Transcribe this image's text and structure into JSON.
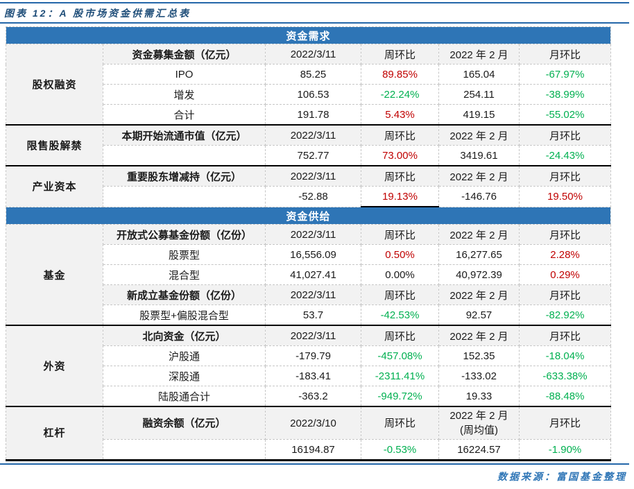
{
  "page": {
    "title": "图表 12：A 股市场资金供需汇总表",
    "source": "数据来源：富国基金整理"
  },
  "colors": {
    "banner_blue": "#2E75B6",
    "rule_blue": "#2467A9",
    "title_blue": "#1F4E79",
    "positive_red": "#C00000",
    "negative_green": "#00B050",
    "header_grey": "#F2F2F2"
  },
  "chart_data": {
    "type": "table",
    "title": "图表 12：A 股市场资金供需汇总表",
    "source": "数据来源：富国基金整理",
    "sections": [
      {
        "banner": "资金需求",
        "groups": [
          {
            "category": "股权融资",
            "rows": [
              {
                "kind": "header",
                "cells": [
                  {
                    "t": "资金募集金额（亿元）"
                  },
                  {
                    "t": "2022/3/11"
                  },
                  {
                    "t": "周环比"
                  },
                  {
                    "t": "2022 年 2 月"
                  },
                  {
                    "t": "月环比"
                  }
                ]
              },
              {
                "kind": "data",
                "cells": [
                  {
                    "t": "IPO"
                  },
                  {
                    "t": "85.25"
                  },
                  {
                    "t": "89.85%",
                    "c": "red"
                  },
                  {
                    "t": "165.04"
                  },
                  {
                    "t": "-67.97%",
                    "c": "green"
                  }
                ]
              },
              {
                "kind": "data",
                "cells": [
                  {
                    "t": "增发"
                  },
                  {
                    "t": "106.53"
                  },
                  {
                    "t": "-22.24%",
                    "c": "green"
                  },
                  {
                    "t": "254.11"
                  },
                  {
                    "t": "-38.99%",
                    "c": "green"
                  }
                ]
              },
              {
                "kind": "data",
                "cells": [
                  {
                    "t": "合计"
                  },
                  {
                    "t": "191.78"
                  },
                  {
                    "t": "5.43%",
                    "c": "red"
                  },
                  {
                    "t": "419.15"
                  },
                  {
                    "t": "-55.02%",
                    "c": "green"
                  }
                ]
              }
            ]
          },
          {
            "category": "限售股解禁",
            "rows": [
              {
                "kind": "header",
                "cells": [
                  {
                    "t": "本期开始流通市值（亿元）"
                  },
                  {
                    "t": "2022/3/11"
                  },
                  {
                    "t": "周环比"
                  },
                  {
                    "t": "2022 年 2 月"
                  },
                  {
                    "t": "月环比"
                  }
                ]
              },
              {
                "kind": "data",
                "cells": [
                  {
                    "t": ""
                  },
                  {
                    "t": "752.77"
                  },
                  {
                    "t": "73.00%",
                    "c": "red"
                  },
                  {
                    "t": "3419.61"
                  },
                  {
                    "t": "-24.43%",
                    "c": "green"
                  }
                ]
              }
            ]
          },
          {
            "category": "产业资本",
            "rows": [
              {
                "kind": "header",
                "cells": [
                  {
                    "t": "重要股东增减持（亿元）"
                  },
                  {
                    "t": "2022/3/11"
                  },
                  {
                    "t": "周环比"
                  },
                  {
                    "t": "2022 年 2 月"
                  },
                  {
                    "t": "月环比"
                  }
                ]
              },
              {
                "kind": "data",
                "cells": [
                  {
                    "t": ""
                  },
                  {
                    "t": "-52.88"
                  },
                  {
                    "t": "19.13%",
                    "c": "red",
                    "u": true
                  },
                  {
                    "t": "-146.76"
                  },
                  {
                    "t": "19.50%",
                    "c": "red"
                  }
                ]
              }
            ]
          }
        ]
      },
      {
        "banner": "资金供给",
        "groups": [
          {
            "category": "基金",
            "rows": [
              {
                "kind": "header",
                "cells": [
                  {
                    "t": "开放式公募基金份额（亿份）"
                  },
                  {
                    "t": "2022/3/11"
                  },
                  {
                    "t": "周环比"
                  },
                  {
                    "t": "2022 年 2 月"
                  },
                  {
                    "t": "月环比"
                  }
                ]
              },
              {
                "kind": "data",
                "cells": [
                  {
                    "t": "股票型"
                  },
                  {
                    "t": "16,556.09"
                  },
                  {
                    "t": "0.50%",
                    "c": "red"
                  },
                  {
                    "t": "16,277.65"
                  },
                  {
                    "t": "2.28%",
                    "c": "red"
                  }
                ]
              },
              {
                "kind": "data",
                "cells": [
                  {
                    "t": "混合型"
                  },
                  {
                    "t": "41,027.41"
                  },
                  {
                    "t": "0.00%"
                  },
                  {
                    "t": "40,972.39"
                  },
                  {
                    "t": "0.29%",
                    "c": "red"
                  }
                ]
              },
              {
                "kind": "header",
                "cells": [
                  {
                    "t": "新成立基金份额（亿份）"
                  },
                  {
                    "t": "2022/3/11"
                  },
                  {
                    "t": "周环比"
                  },
                  {
                    "t": "2022 年 2 月"
                  },
                  {
                    "t": "月环比"
                  }
                ]
              },
              {
                "kind": "data",
                "cells": [
                  {
                    "t": "股票型+偏股混合型"
                  },
                  {
                    "t": "53.7"
                  },
                  {
                    "t": "-42.53%",
                    "c": "green"
                  },
                  {
                    "t": "92.57"
                  },
                  {
                    "t": "-82.92%",
                    "c": "green"
                  }
                ]
              }
            ]
          },
          {
            "category": "外资",
            "rows": [
              {
                "kind": "header",
                "cells": [
                  {
                    "t": "北向资金（亿元）"
                  },
                  {
                    "t": "2022/3/11"
                  },
                  {
                    "t": "周环比"
                  },
                  {
                    "t": "2022 年 2 月"
                  },
                  {
                    "t": "月环比"
                  }
                ]
              },
              {
                "kind": "data",
                "cells": [
                  {
                    "t": "沪股通"
                  },
                  {
                    "t": "-179.79"
                  },
                  {
                    "t": "-457.08%",
                    "c": "green"
                  },
                  {
                    "t": "152.35"
                  },
                  {
                    "t": "-18.04%",
                    "c": "green"
                  }
                ]
              },
              {
                "kind": "data",
                "cells": [
                  {
                    "t": "深股通"
                  },
                  {
                    "t": "-183.41"
                  },
                  {
                    "t": "-2311.41%",
                    "c": "green"
                  },
                  {
                    "t": "-133.02"
                  },
                  {
                    "t": "-633.38%",
                    "c": "green"
                  }
                ]
              },
              {
                "kind": "data",
                "cells": [
                  {
                    "t": "陆股通合计"
                  },
                  {
                    "t": "-363.2"
                  },
                  {
                    "t": "-949.72%",
                    "c": "green"
                  },
                  {
                    "t": "19.33"
                  },
                  {
                    "t": "-88.48%",
                    "c": "green"
                  }
                ]
              }
            ]
          },
          {
            "category": "杠杆",
            "rows": [
              {
                "kind": "header",
                "tall": true,
                "cells": [
                  {
                    "t": "融资余额（亿元）"
                  },
                  {
                    "t": "2022/3/10"
                  },
                  {
                    "t": "周环比"
                  },
                  {
                    "t": "2022 年 2 月\n(周均值)"
                  },
                  {
                    "t": "月环比"
                  }
                ]
              },
              {
                "kind": "data",
                "cells": [
                  {
                    "t": ""
                  },
                  {
                    "t": "16194.87"
                  },
                  {
                    "t": "-0.53%",
                    "c": "green"
                  },
                  {
                    "t": "16224.57"
                  },
                  {
                    "t": "-1.90%",
                    "c": "green"
                  }
                ]
              }
            ]
          }
        ]
      }
    ]
  }
}
